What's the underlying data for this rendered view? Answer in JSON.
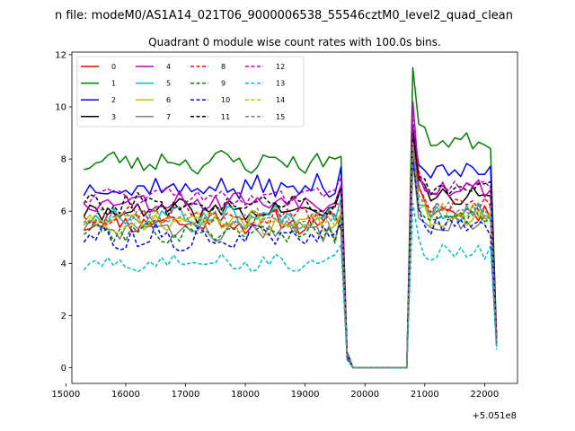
{
  "figure": {
    "suptitle": "n file: modeM0/AS1A14_021T06_9000006538_55546cztM0_level2_quad_clean"
  },
  "chart_data": {
    "type": "line",
    "title": "Quadrant 0 module wise count rates with 100.0s bins.",
    "xlabel": "",
    "ylabel": "",
    "xlim": [
      15100,
      22550
    ],
    "ylim": [
      -0.6,
      12.1
    ],
    "x_offset_label": "+5.051e8",
    "xticks": [
      15000,
      16000,
      17000,
      18000,
      19000,
      20000,
      21000,
      22000
    ],
    "xtick_labels": [
      "15000",
      "16000",
      "17000",
      "18000",
      "19000",
      "20000",
      "21000",
      "22000"
    ],
    "yticks": [
      0,
      2,
      4,
      6,
      8,
      10,
      12
    ],
    "ytick_labels": [
      "0",
      "2",
      "4",
      "6",
      "8",
      "10",
      "12"
    ],
    "legend_position": "upper left",
    "legend_columns": 4,
    "gap_x": [
      19800,
      19900,
      20000,
      20100,
      20200,
      20300,
      20400,
      20500,
      20600,
      20700
    ],
    "segment1_x": [
      15300,
      15400,
      15500,
      15600,
      15700,
      15800,
      15900,
      16000,
      16100,
      16200,
      16300,
      16400,
      16500,
      16600,
      16700,
      16800,
      16900,
      17000,
      17100,
      17200,
      17300,
      17400,
      17500,
      17600,
      17700,
      17800,
      17900,
      18000,
      18100,
      18200,
      18300,
      18400,
      18500,
      18600,
      18700,
      18800,
      18900,
      19000,
      19100,
      19200,
      19300,
      19400,
      19500,
      19600,
      19700
    ],
    "segment2_x": [
      20800,
      20900,
      21000,
      21100,
      21200,
      21300,
      21400,
      21500,
      21600,
      21700,
      21800,
      21900,
      22000,
      22100,
      22200
    ],
    "series": [
      {
        "name": "0",
        "color": "#ff0000",
        "dash": "solid",
        "level1": 5.6,
        "amp1": 0.35,
        "edge1": 5.3,
        "trans": 0.5,
        "peak": 9.0,
        "level2": 6.0,
        "amp2": 0.4,
        "end": 1.0,
        "seed": 11
      },
      {
        "name": "1",
        "color": "#008000",
        "dash": "solid",
        "level1": 7.9,
        "amp1": 0.35,
        "edge1": 8.1,
        "trans": 0.6,
        "peak": 11.5,
        "level2": 8.7,
        "amp2": 0.35,
        "end": 1.2,
        "seed": 23
      },
      {
        "name": "2",
        "color": "#0000ff",
        "dash": "solid",
        "level1": 6.9,
        "amp1": 0.4,
        "edge1": 7.7,
        "trans": 0.6,
        "peak": 9.2,
        "level2": 7.5,
        "amp2": 0.35,
        "end": 1.1,
        "seed": 37
      },
      {
        "name": "3",
        "color": "#000000",
        "dash": "solid",
        "level1": 6.0,
        "amp1": 0.35,
        "edge1": 6.9,
        "trans": 0.5,
        "peak": 9.2,
        "level2": 6.6,
        "amp2": 0.35,
        "end": 1.0,
        "seed": 41
      },
      {
        "name": "4",
        "color": "#bf00bf",
        "dash": "solid",
        "level1": 6.4,
        "amp1": 0.35,
        "edge1": 7.0,
        "trans": 0.5,
        "peak": 10.2,
        "level2": 6.9,
        "amp2": 0.4,
        "end": 1.0,
        "seed": 53
      },
      {
        "name": "5",
        "color": "#00bfbf",
        "dash": "solid",
        "level1": 5.8,
        "amp1": 0.35,
        "edge1": 6.5,
        "trans": 0.5,
        "peak": 8.8,
        "level2": 6.0,
        "amp2": 0.4,
        "end": 0.9,
        "seed": 67
      },
      {
        "name": "6",
        "color": "#bfbf00",
        "dash": "solid",
        "level1": 5.6,
        "amp1": 0.4,
        "edge1": 5.8,
        "trans": 0.4,
        "peak": 8.2,
        "level2": 5.7,
        "amp2": 0.4,
        "end": 0.9,
        "seed": 71
      },
      {
        "name": "7",
        "color": "#808080",
        "dash": "solid",
        "level1": 5.3,
        "amp1": 0.35,
        "edge1": 5.9,
        "trans": 0.4,
        "peak": 8.0,
        "level2": 5.6,
        "amp2": 0.35,
        "end": 0.8,
        "seed": 83
      },
      {
        "name": "8",
        "color": "#ff0000",
        "dash": "dashed",
        "level1": 5.9,
        "amp1": 0.35,
        "edge1": 6.3,
        "trans": 0.5,
        "peak": 8.7,
        "level2": 6.2,
        "amp2": 0.35,
        "end": 1.0,
        "seed": 97
      },
      {
        "name": "9",
        "color": "#008000",
        "dash": "dashed",
        "level1": 5.2,
        "amp1": 0.35,
        "edge1": 5.9,
        "trans": 0.4,
        "peak": 8.3,
        "level2": 5.9,
        "amp2": 0.35,
        "end": 0.9,
        "seed": 101
      },
      {
        "name": "10",
        "color": "#0000ff",
        "dash": "dashed",
        "level1": 5.0,
        "amp1": 0.4,
        "edge1": 5.5,
        "trans": 0.4,
        "peak": 8.0,
        "level2": 5.4,
        "amp2": 0.4,
        "end": 0.9,
        "seed": 113
      },
      {
        "name": "11",
        "color": "#000000",
        "dash": "dashed",
        "level1": 6.3,
        "amp1": 0.35,
        "edge1": 6.9,
        "trans": 0.5,
        "peak": 9.0,
        "level2": 6.9,
        "amp2": 0.35,
        "end": 1.0,
        "seed": 127
      },
      {
        "name": "12",
        "color": "#bf00bf",
        "dash": "dashed",
        "level1": 6.6,
        "amp1": 0.3,
        "edge1": 7.3,
        "trans": 0.6,
        "peak": 9.5,
        "level2": 6.9,
        "amp2": 0.3,
        "end": 1.0,
        "seed": 131
      },
      {
        "name": "13",
        "color": "#00bfbf",
        "dash": "dashed",
        "level1": 4.0,
        "amp1": 0.25,
        "edge1": 4.7,
        "trans": 0.3,
        "peak": 6.3,
        "level2": 4.4,
        "amp2": 0.35,
        "end": 0.7,
        "seed": 149
      },
      {
        "name": "14",
        "color": "#bfbf00",
        "dash": "dashed",
        "level1": 5.6,
        "amp1": 0.35,
        "edge1": 6.0,
        "trans": 0.5,
        "peak": 8.6,
        "level2": 6.0,
        "amp2": 0.35,
        "end": 1.0,
        "seed": 157
      },
      {
        "name": "15",
        "color": "#808080",
        "dash": "dashed",
        "level1": 5.8,
        "amp1": 0.35,
        "edge1": 6.1,
        "trans": 0.5,
        "peak": 8.5,
        "level2": 6.1,
        "amp2": 0.35,
        "end": 0.9,
        "seed": 163
      }
    ]
  }
}
